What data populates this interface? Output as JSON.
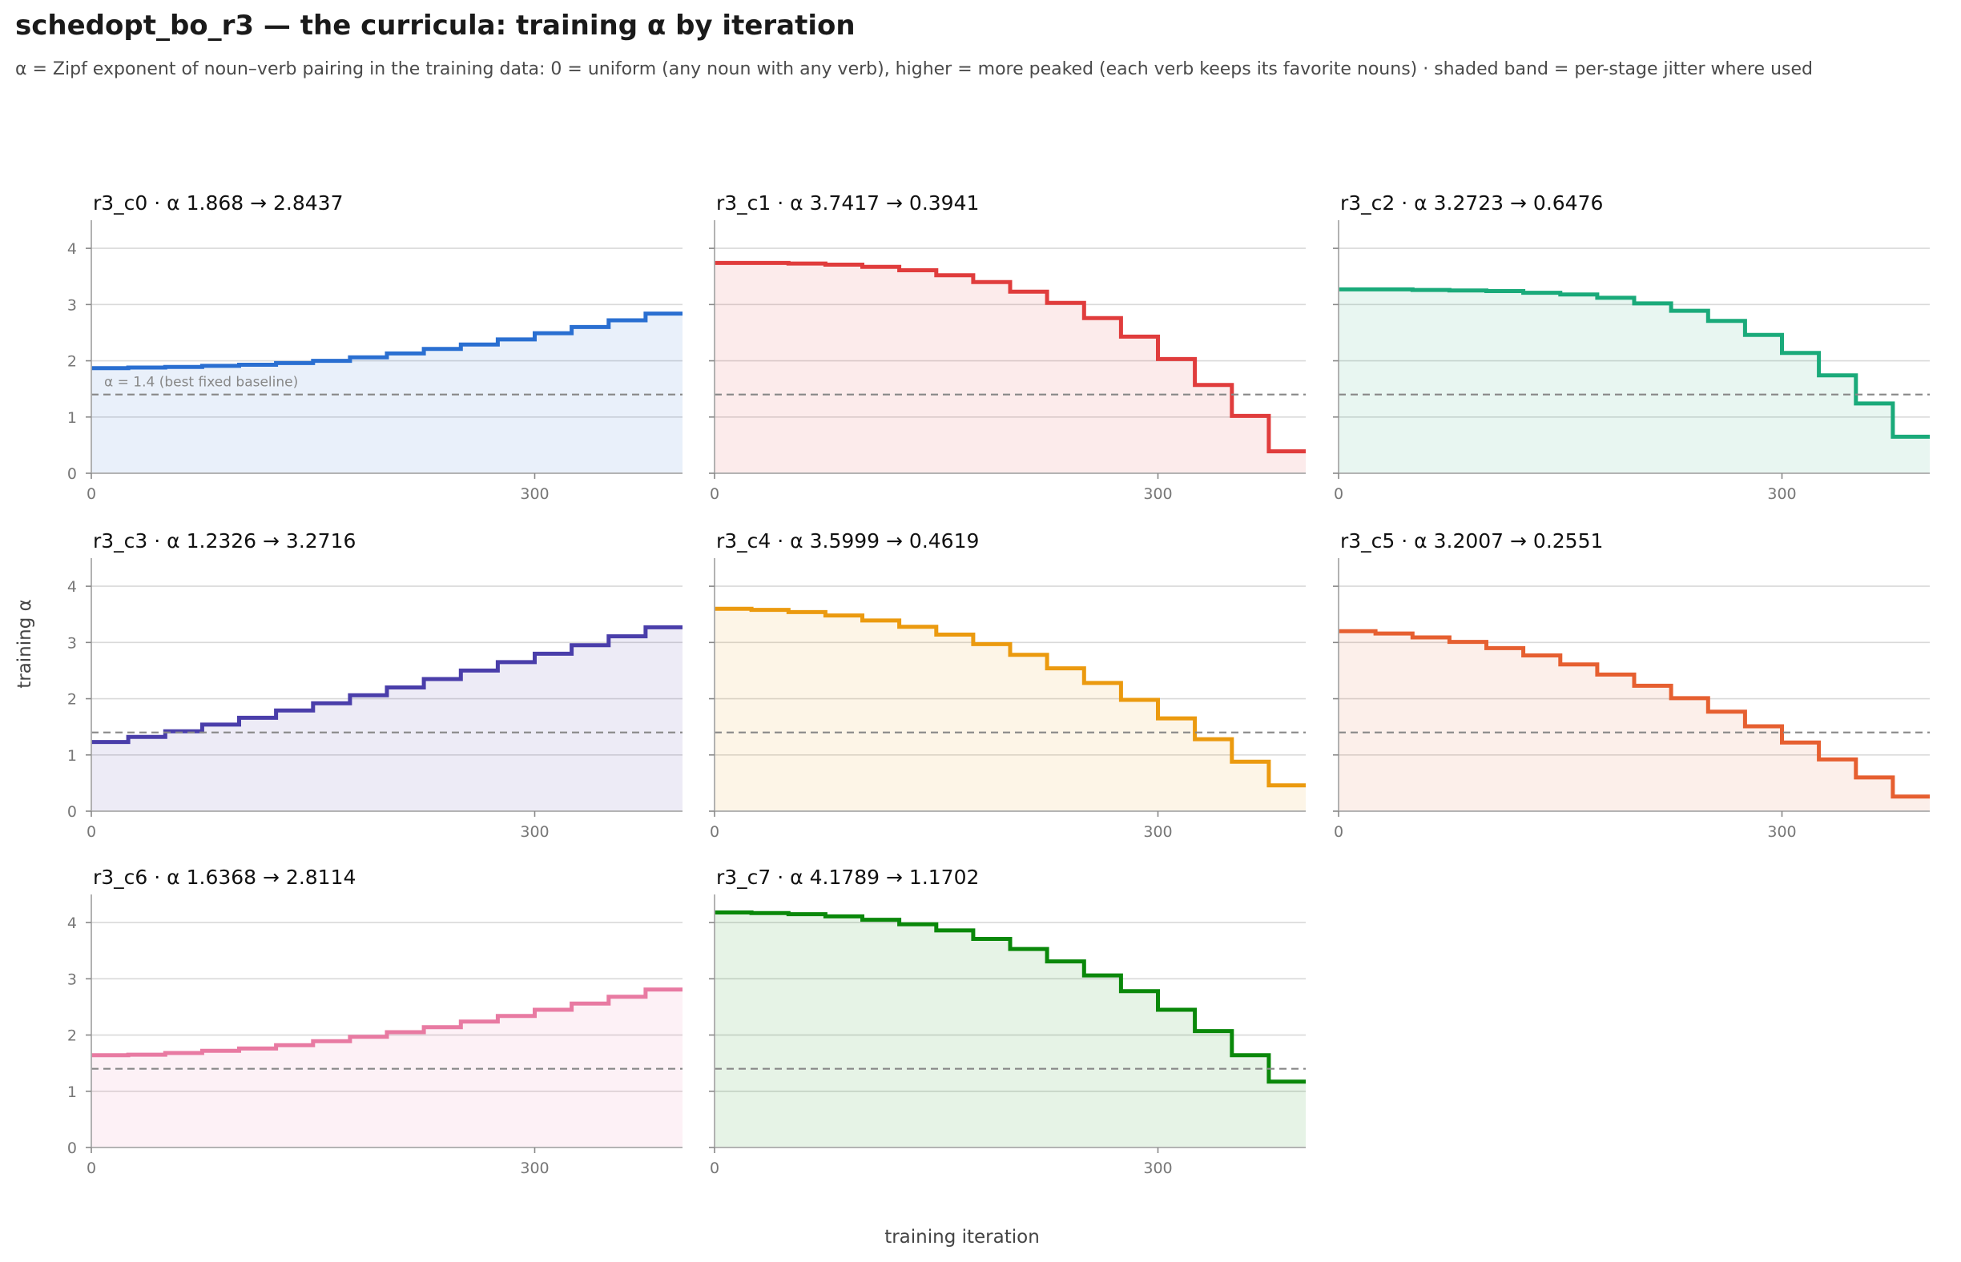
{
  "title": "schedopt_bo_r3 — the curricula: training α by iteration",
  "subtitle": "α = Zipf exponent of noun–verb pairing in the training data: 0 = uniform (any noun with any verb), higher = more peaked (each verb keeps its favorite nouns) · shaded band = per-stage jitter where used",
  "chart_data": {
    "type": "line",
    "step": true,
    "xlabel": "training iteration",
    "ylabel": "training α",
    "xlim": [
      0,
      400
    ],
    "ylim": [
      0,
      4.5
    ],
    "xticks": [
      0,
      300
    ],
    "yticks": [
      0,
      1,
      2,
      3,
      4
    ],
    "grid": true,
    "reference_line": {
      "y": 1.4,
      "label": "α = 1.4 (best fixed baseline)"
    },
    "stage_length": 25,
    "panels": [
      {
        "name": "r3_c0",
        "title": "r3_c0   ·   α 1.868 → 2.8437",
        "color": "#2a6fd1",
        "values": [
          1.87,
          1.88,
          1.89,
          1.91,
          1.93,
          1.96,
          2.0,
          2.06,
          2.13,
          2.21,
          2.29,
          2.38,
          2.49,
          2.6,
          2.72,
          2.84
        ]
      },
      {
        "name": "r3_c1",
        "title": "r3_c1   ·   α 3.7417 → 0.3941",
        "color": "#e03c3c",
        "values": [
          3.74,
          3.74,
          3.73,
          3.71,
          3.67,
          3.61,
          3.52,
          3.4,
          3.23,
          3.03,
          2.76,
          2.43,
          2.03,
          1.57,
          1.02,
          0.39
        ]
      },
      {
        "name": "r3_c2",
        "title": "r3_c2   ·   α 3.2723 → 0.6476",
        "color": "#1aaa7a",
        "values": [
          3.27,
          3.27,
          3.26,
          3.25,
          3.24,
          3.21,
          3.18,
          3.12,
          3.02,
          2.89,
          2.71,
          2.46,
          2.14,
          1.74,
          1.24,
          0.65
        ]
      },
      {
        "name": "r3_c3",
        "title": "r3_c3   ·   α 1.2326 → 3.2716",
        "color": "#4a3eaa",
        "values": [
          1.23,
          1.32,
          1.42,
          1.54,
          1.66,
          1.79,
          1.92,
          2.06,
          2.2,
          2.35,
          2.5,
          2.65,
          2.8,
          2.95,
          3.11,
          3.27
        ]
      },
      {
        "name": "r3_c4",
        "title": "r3_c4   ·   α 3.5999 → 0.4619",
        "color": "#eb9a0f",
        "values": [
          3.6,
          3.58,
          3.54,
          3.48,
          3.39,
          3.28,
          3.14,
          2.97,
          2.78,
          2.54,
          2.28,
          1.98,
          1.65,
          1.28,
          0.88,
          0.46
        ]
      },
      {
        "name": "r3_c5",
        "title": "r3_c5   ·   α 3.2007 → 0.2551",
        "color": "#e65f30",
        "values": [
          3.2,
          3.16,
          3.09,
          3.01,
          2.9,
          2.77,
          2.61,
          2.43,
          2.23,
          2.01,
          1.77,
          1.51,
          1.22,
          0.92,
          0.6,
          0.26
        ]
      },
      {
        "name": "r3_c6",
        "title": "r3_c6   ·   α 1.6368 → 2.8114",
        "color": "#e87aa2",
        "values": [
          1.64,
          1.65,
          1.68,
          1.72,
          1.76,
          1.82,
          1.89,
          1.97,
          2.05,
          2.14,
          2.24,
          2.34,
          2.45,
          2.56,
          2.68,
          2.81
        ]
      },
      {
        "name": "r3_c7",
        "title": "r3_c7   ·   α 4.1789 → 1.1702",
        "color": "#0a880a",
        "values": [
          4.18,
          4.17,
          4.15,
          4.11,
          4.05,
          3.97,
          3.86,
          3.71,
          3.53,
          3.31,
          3.06,
          2.78,
          2.45,
          2.07,
          1.64,
          1.17
        ]
      }
    ]
  }
}
